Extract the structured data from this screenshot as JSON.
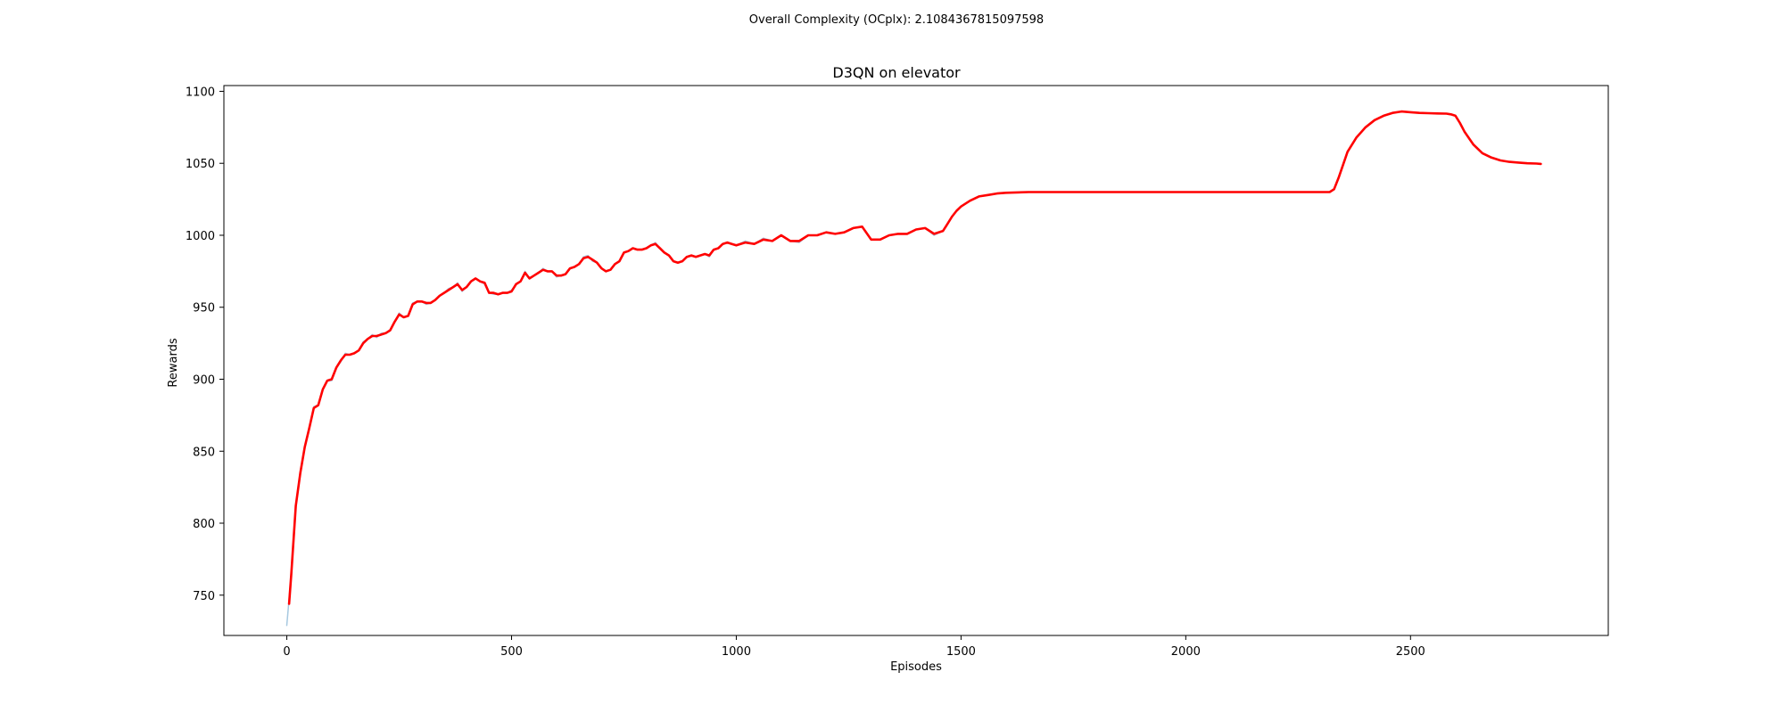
{
  "header": {
    "complexity_label": "Overall Complexity (OCplx): 2.1084367815097598",
    "complexity_color": "#ff0000"
  },
  "chart_data": {
    "type": "line",
    "title": "D3QN on elevator",
    "xlabel": "Episodes",
    "ylabel": "Rewards",
    "xlim": [
      -140,
      2940
    ],
    "ylim": [
      722,
      1104
    ],
    "xticks": [
      0,
      500,
      1000,
      1500,
      2000,
      2500
    ],
    "yticks": [
      750,
      800,
      850,
      900,
      950,
      1000,
      1050,
      1100
    ],
    "grid": false,
    "colors": {
      "raw": "#a6c8e0",
      "smoothed": "#ff0000"
    },
    "series": [
      {
        "style": "raw",
        "x": [
          0,
          10,
          20,
          30,
          40,
          50,
          60,
          70,
          80,
          90,
          100,
          110,
          120,
          130,
          140,
          150,
          160,
          170,
          180,
          190,
          200,
          210,
          220,
          230,
          240,
          250,
          260,
          270,
          280,
          290,
          300,
          310,
          320,
          330,
          340,
          350,
          360,
          370,
          380,
          390,
          400,
          410,
          420,
          430,
          440,
          450,
          460,
          470,
          480,
          490,
          500,
          510,
          520,
          530,
          540,
          550,
          560,
          570,
          580,
          590,
          600,
          610,
          620,
          630,
          640,
          650,
          660,
          670,
          680,
          690,
          700,
          710,
          720,
          730,
          740,
          750,
          760,
          770,
          780,
          790,
          800,
          810,
          820,
          830,
          840,
          850,
          860,
          870,
          880,
          890,
          900,
          910,
          920,
          930,
          940,
          950,
          960,
          970,
          980,
          990,
          1000,
          1020,
          1040,
          1060,
          1080,
          1100,
          1120,
          1140,
          1160,
          1180,
          1200,
          1220,
          1240,
          1260,
          1280,
          1300,
          1320,
          1340,
          1360,
          1380,
          1400,
          1420,
          1440,
          1460
        ],
        "y": [
          729,
          765,
          812,
          835,
          853,
          866,
          881,
          882,
          893,
          899,
          899,
          908,
          912,
          918,
          917,
          918,
          920,
          926,
          928,
          931,
          929,
          932,
          932,
          934,
          940,
          946,
          943,
          944,
          953,
          954,
          954,
          952,
          953,
          955,
          958,
          960,
          963,
          964,
          967,
          961,
          964,
          968,
          970,
          968,
          966,
          960,
          959,
          959,
          960,
          960,
          962,
          966,
          968,
          975,
          970,
          972,
          974,
          977,
          975,
          975,
          971,
          972,
          973,
          977,
          978,
          980,
          985,
          986,
          982,
          981,
          977,
          975,
          976,
          980,
          982,
          988,
          989,
          991,
          990,
          990,
          991,
          993,
          995,
          991,
          988,
          986,
          982,
          981,
          982,
          985,
          986,
          985,
          986,
          987,
          985,
          990,
          991,
          994,
          995,
          994,
          993,
          996,
          994,
          998,
          996,
          1000,
          996,
          995,
          1000,
          1000,
          1002,
          1001,
          1002,
          1005,
          1006,
          997,
          997,
          1000,
          1001,
          1001,
          1004,
          1005,
          1000,
          1003
        ]
      },
      {
        "style": "smoothed",
        "x": [
          5,
          10,
          20,
          30,
          40,
          50,
          60,
          70,
          80,
          90,
          100,
          110,
          120,
          130,
          140,
          150,
          160,
          170,
          180,
          190,
          200,
          210,
          220,
          230,
          240,
          250,
          260,
          270,
          280,
          290,
          300,
          310,
          320,
          330,
          340,
          350,
          360,
          370,
          380,
          390,
          400,
          410,
          420,
          430,
          440,
          450,
          460,
          470,
          480,
          490,
          500,
          510,
          520,
          530,
          540,
          550,
          560,
          570,
          580,
          590,
          600,
          610,
          620,
          630,
          640,
          650,
          660,
          670,
          680,
          690,
          700,
          710,
          720,
          730,
          740,
          750,
          760,
          770,
          780,
          790,
          800,
          810,
          820,
          830,
          840,
          850,
          860,
          870,
          880,
          890,
          900,
          910,
          920,
          930,
          940,
          950,
          960,
          970,
          980,
          990,
          1000,
          1020,
          1040,
          1060,
          1080,
          1100,
          1120,
          1140,
          1160,
          1180,
          1200,
          1220,
          1240,
          1260,
          1280,
          1300,
          1320,
          1340,
          1360,
          1380,
          1400,
          1420,
          1440,
          1460,
          1470,
          1480,
          1490,
          1500,
          1520,
          1540,
          1560,
          1580,
          1600,
          1650,
          1700,
          1800,
          1900,
          2000,
          2100,
          2200,
          2300,
          2310,
          2320,
          2330,
          2340,
          2360,
          2380,
          2400,
          2420,
          2440,
          2460,
          2480,
          2500,
          2520,
          2540,
          2560,
          2580,
          2590,
          2600,
          2610,
          2620,
          2640,
          2660,
          2680,
          2700,
          2720,
          2740,
          2760,
          2780,
          2790
        ],
        "y": [
          744,
          765,
          812,
          835,
          853,
          866,
          880,
          882,
          893,
          899,
          900,
          908,
          913,
          917,
          917,
          918,
          920,
          925,
          928,
          930,
          930,
          931,
          932,
          934,
          940,
          945,
          943,
          944,
          952,
          954,
          954,
          953,
          953,
          955,
          958,
          960,
          962,
          964,
          966,
          962,
          964,
          968,
          970,
          968,
          967,
          960,
          960,
          959,
          960,
          960,
          961,
          966,
          968,
          974,
          970,
          972,
          974,
          976,
          975,
          975,
          972,
          972,
          973,
          977,
          978,
          980,
          984,
          985,
          983,
          981,
          977,
          975,
          976,
          980,
          982,
          988,
          989,
          991,
          990,
          990,
          991,
          993,
          994,
          991,
          988,
          986,
          982,
          981,
          982,
          985,
          986,
          985,
          986,
          987,
          986,
          990,
          991,
          994,
          995,
          994,
          993,
          995,
          994,
          997,
          996,
          1000,
          996,
          996,
          1000,
          1000,
          1002,
          1001,
          1002,
          1005,
          1006,
          997,
          997,
          1000,
          1001,
          1001,
          1004,
          1005,
          1001,
          1003,
          1008,
          1013,
          1017,
          1020,
          1024,
          1027,
          1028,
          1029,
          1029.5,
          1030,
          1030,
          1030,
          1030,
          1030,
          1030,
          1030,
          1030,
          1030,
          1030,
          1032,
          1040,
          1058,
          1068,
          1075,
          1080,
          1083,
          1085,
          1086,
          1085.5,
          1085,
          1084.8,
          1084.6,
          1084.5,
          1084,
          1083,
          1078,
          1072,
          1063,
          1057,
          1054,
          1052,
          1051,
          1050.5,
          1050,
          1049.8,
          1049.6
        ]
      }
    ]
  }
}
